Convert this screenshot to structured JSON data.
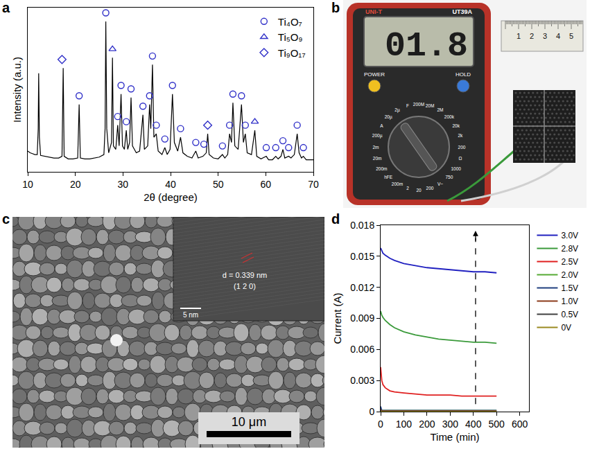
{
  "panel_labels": [
    "a",
    "b",
    "c",
    "d"
  ],
  "chart_data": [
    {
      "type": "line",
      "x_label": "2θ (degree)",
      "y_label": "Intensity (a.u.)",
      "xlim": [
        10,
        70
      ],
      "xticks": [
        10,
        20,
        30,
        40,
        50,
        60,
        70
      ],
      "ylim": [
        5,
        100
      ],
      "tick_labels": "x",
      "legend": "upper right",
      "series": [
        {
          "type": "line",
          "color": "#000000",
          "x": [
            10,
            10.5,
            11,
            11.5,
            12,
            12.2,
            12.3,
            12.45,
            12.7,
            13.5,
            14.5,
            15.5,
            16.5,
            17.2,
            17.45,
            17.65,
            18.5,
            19.5,
            20.5,
            20.8,
            21.05,
            22,
            23,
            24,
            25,
            26,
            26.25,
            26.4,
            26.6,
            27,
            27.6,
            27.8,
            28,
            28.5,
            28.9,
            29.2,
            29.6,
            29.9,
            30.3,
            30.7,
            31,
            31.4,
            31.7,
            32,
            32.8,
            33.5,
            34.2,
            34.5,
            35.2,
            35.6,
            35.85,
            36.2,
            36.5,
            37,
            37.4,
            38.2,
            38.8,
            39.3,
            39.9,
            40.4,
            40.8,
            41.5,
            42.1,
            42.6,
            43.5,
            44.5,
            45.3,
            45.8,
            46.8,
            47.5,
            47.8,
            48.1,
            49,
            50,
            50.9,
            51.4,
            52,
            52.4,
            52.8,
            53.1,
            53.5,
            54.2,
            54.9,
            55.3,
            55.7,
            56.1,
            57,
            57.7,
            58.1,
            59,
            60.1,
            60.6,
            61.4,
            62.1,
            62.6,
            63.2,
            63.6,
            64,
            64.8,
            65.3,
            66,
            66.6,
            67,
            67.5,
            67.9,
            68.5,
            69.5,
            70
          ],
          "values": [
            17,
            16,
            15.5,
            15,
            15,
            30,
            62,
            25,
            14.5,
            14,
            13.5,
            13,
            13,
            14,
            65,
            14,
            12.5,
            12.5,
            13,
            44,
            13,
            12.5,
            12.5,
            13,
            13.5,
            15,
            30,
            92,
            30,
            16,
            22,
            71,
            20,
            18,
            32,
            20,
            50,
            20,
            18,
            29,
            18,
            22,
            48,
            20,
            16,
            17,
            38,
            18,
            20,
            44,
            30,
            67,
            25,
            27,
            17,
            15,
            19,
            15,
            18,
            50,
            22,
            17,
            25,
            16,
            14,
            13,
            17,
            13,
            14,
            16,
            27,
            15,
            13,
            12.5,
            15,
            13,
            15,
            27,
            22,
            45,
            20,
            18,
            44,
            22,
            27,
            16,
            15,
            29,
            14,
            12.5,
            14,
            12,
            12,
            14,
            12.5,
            14,
            18,
            13,
            14,
            13,
            15,
            27,
            16,
            13,
            14,
            12,
            12,
            12
          ]
        },
        {
          "name": "Ti₄O₇",
          "type": "scatter",
          "marker": "circle-open",
          "color": "#3030c8",
          "x": [
            20.8,
            26.4,
            28.9,
            29.6,
            30.7,
            31.7,
            34.2,
            35.6,
            36.2,
            37,
            38.8,
            40.4,
            42.1,
            45.3,
            47,
            50.9,
            52.4,
            53.1,
            54.9,
            55.7,
            60.1,
            62.1,
            63.6,
            64.8,
            66.6,
            67.9
          ],
          "values": [
            49,
            97,
            37,
            55,
            34,
            53,
            43,
            49,
            72,
            32,
            24,
            55,
            30,
            22,
            21,
            20,
            32,
            50,
            49,
            32,
            19,
            19,
            23,
            19,
            32,
            19
          ]
        },
        {
          "name": "Ti₅O₉",
          "type": "scatter",
          "marker": "triangle-up-open",
          "color": "#3030c8",
          "x": [
            27.8,
            57.7
          ],
          "values": [
            76,
            34
          ]
        },
        {
          "name": "Ti₉O₁₇",
          "type": "scatter",
          "marker": "diamond-open",
          "color": "#3030c8",
          "x": [
            17.2,
            47.8
          ],
          "values": [
            70,
            32
          ]
        }
      ]
    },
    {
      "type": "line",
      "x_label": "Time (min)",
      "y_label": "Current (A)",
      "xlim": [
        0,
        640
      ],
      "xticks": [
        0,
        100,
        200,
        300,
        400,
        500,
        600
      ],
      "ylim": [
        0,
        0.018
      ],
      "yticks": [
        0,
        0.003,
        0.006,
        0.009,
        0.012,
        0.015,
        0.018
      ],
      "legend": "right",
      "x": [
        0,
        5,
        10,
        20,
        40,
        60,
        100,
        150,
        200,
        250,
        300,
        350,
        400,
        450,
        500
      ],
      "series": [
        {
          "name": "3.0V",
          "color": "#2020c0",
          "values": [
            0.0158,
            0.0155,
            0.0153,
            0.0151,
            0.0148,
            0.0146,
            0.0143,
            0.0141,
            0.0139,
            0.0138,
            0.0137,
            0.0136,
            0.0135,
            0.0135,
            0.0134
          ]
        },
        {
          "name": "2.8V",
          "color": "#3a9a3a",
          "values": [
            0.0097,
            0.0093,
            0.0091,
            0.0088,
            0.0084,
            0.0081,
            0.0077,
            0.0074,
            0.0072,
            0.007,
            0.0069,
            0.0068,
            0.0067,
            0.0067,
            0.0066
          ]
        },
        {
          "name": "2.5V",
          "color": "#e02020",
          "values": [
            0.0043,
            0.003,
            0.0026,
            0.0023,
            0.002,
            0.0019,
            0.0018,
            0.0017,
            0.0016,
            0.0016,
            0.0016,
            0.0015,
            0.0015,
            0.0015,
            0.0015
          ]
        },
        {
          "name": "2.0V",
          "color": "#55aa33",
          "values": [
            0.0002,
            0.0001,
            0.0001,
            0.0001,
            0.0001,
            0.0001,
            0.0001,
            0.0001,
            0.0001,
            0.0001,
            0.0001,
            0.0001,
            0.0001,
            0.0001,
            0.0001
          ]
        },
        {
          "name": "1.5V",
          "color": "#1f3f7f",
          "values": [
            0.0005,
            0.0001,
            0.0001,
            0.0001,
            0.0001,
            0.0001,
            0.0001,
            0.0001,
            0.0001,
            0.0001,
            0.0001,
            0.0001,
            0.0001,
            0.0001,
            0.0001
          ]
        },
        {
          "name": "1.0V",
          "color": "#8b3a1a",
          "values": [
            0.0002,
            5e-05,
            5e-05,
            5e-05,
            5e-05,
            5e-05,
            5e-05,
            5e-05,
            5e-05,
            5e-05,
            5e-05,
            5e-05,
            5e-05,
            5e-05,
            5e-05
          ]
        },
        {
          "name": "0.5V",
          "color": "#404040",
          "values": [
            0.0001,
            0,
            0,
            0,
            0,
            0,
            0,
            0,
            0,
            0,
            0,
            0,
            0,
            0,
            0
          ]
        },
        {
          "name": "0V",
          "color": "#9a8a20",
          "values": [
            0,
            0,
            0,
            0,
            0,
            0,
            0,
            0,
            0,
            0,
            0,
            0,
            0,
            0,
            0
          ]
        }
      ]
    }
  ],
  "photo_b": {
    "display": "01.8",
    "brand": "UNI-T",
    "model": "UT39A",
    "buttons": [
      "POWER",
      "HOLD"
    ],
    "dial_labels": [
      "200M",
      "20M",
      "2M",
      "200k",
      "20k",
      "2k",
      "200",
      "Ω",
      "1000",
      "750",
      "V~",
      "200",
      "20",
      "2",
      "200m",
      "hFE",
      "200m",
      "20m",
      "2m",
      "200µ",
      "A",
      "20µ",
      "2µ",
      "F"
    ],
    "ruler_labels": [
      "1",
      "2",
      "3",
      "4",
      "5"
    ]
  },
  "image_c": {
    "scale_bar": "10 μm",
    "inset": {
      "spacing": "d = 0.339 nm",
      "plane": "(1 2 0)",
      "scale_bar": "5 nm"
    }
  }
}
